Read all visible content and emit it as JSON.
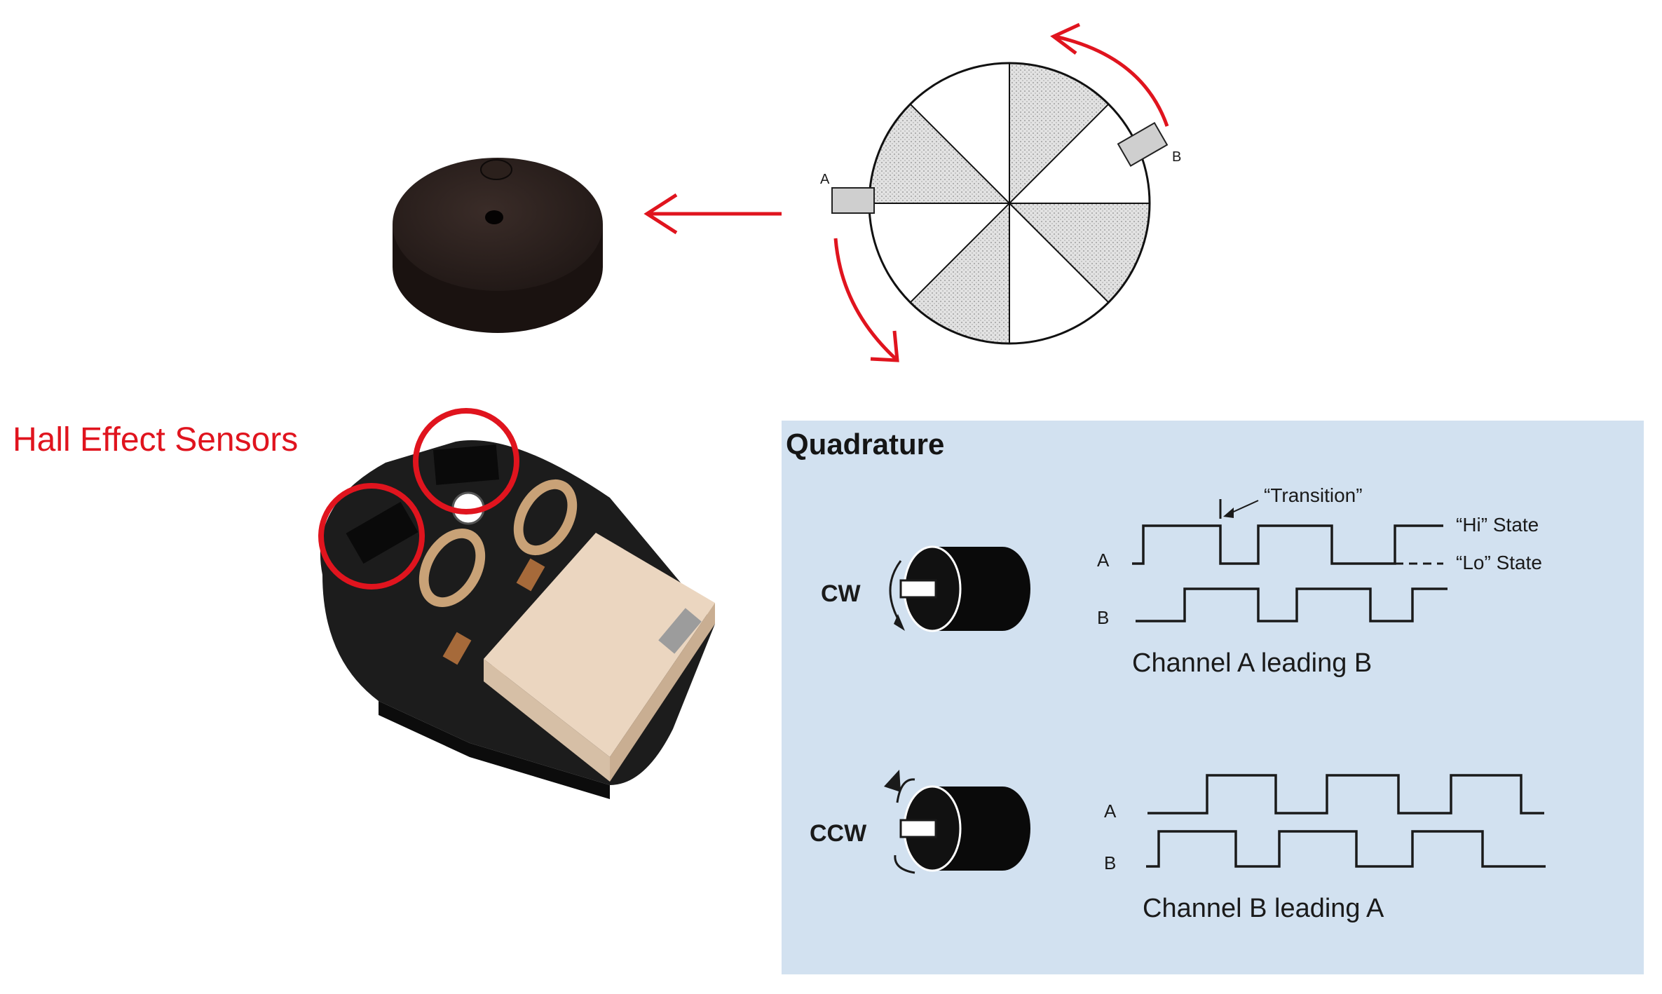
{
  "labels": {
    "hall_effect": "Hall Effect Sensors"
  },
  "disk": {
    "sensor_a": "A",
    "sensor_b": "B"
  },
  "quadrature": {
    "title": "Quadrature",
    "transition": "“Transition”",
    "hi_state": "“Hi” State",
    "lo_state": "“Lo” State",
    "cw": {
      "label": "CW",
      "channel_a": "A",
      "channel_b": "B",
      "caption": "Channel A leading B"
    },
    "ccw": {
      "label": "CCW",
      "channel_a": "A",
      "channel_b": "B",
      "caption": "Channel B leading A"
    }
  },
  "colors": {
    "annotation_red": "#e0141e",
    "panel_bg": "#d2e1f0",
    "disk_shade": "#d9d9d9"
  }
}
